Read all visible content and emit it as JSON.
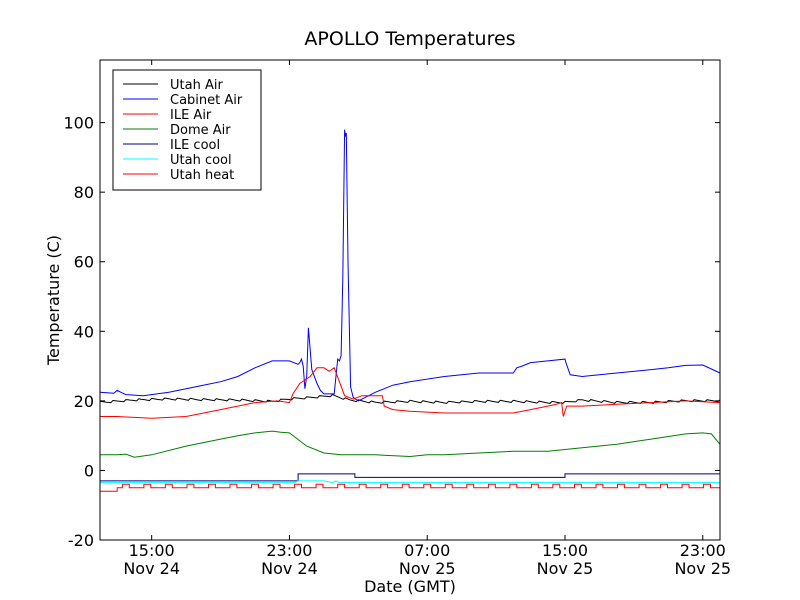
{
  "chart_data": {
    "type": "line",
    "title": "APOLLO Temperatures",
    "xlabel": "Date (GMT)",
    "ylabel": "Temperature (C)",
    "xunit": "hours since Nov 24 12:00 GMT",
    "xlim": [
      0,
      36
    ],
    "ylim": [
      -20,
      118
    ],
    "yticks": [
      -20,
      0,
      20,
      40,
      60,
      80,
      100
    ],
    "xticks": [
      {
        "x": 3,
        "time": "15:00",
        "date": "Nov 24"
      },
      {
        "x": 11,
        "time": "23:00",
        "date": "Nov 24"
      },
      {
        "x": 19,
        "time": "07:00",
        "date": "Nov 25"
      },
      {
        "x": 27,
        "time": "15:00",
        "date": "Nov 25"
      },
      {
        "x": 35,
        "time": "23:00",
        "date": "Nov 25"
      }
    ],
    "grid": false,
    "legend_position": "top-left",
    "series": [
      {
        "name": "Utah Air",
        "color": "#000000",
        "kind": "sawtooth",
        "x": [
          0,
          2,
          4,
          6,
          8,
          10,
          11,
          12.5,
          13.5,
          14.5,
          16,
          18,
          20,
          22,
          24,
          26,
          27,
          28,
          30,
          32,
          34,
          36
        ],
        "y": [
          19.5,
          20.2,
          20.5,
          20.3,
          20.2,
          19.8,
          20.5,
          21,
          21.5,
          20.2,
          19.5,
          19.8,
          19.5,
          19.8,
          19.8,
          19.5,
          19.5,
          20.2,
          19.5,
          19.5,
          20,
          20
        ],
        "amp": 0.7,
        "period": 0.75
      },
      {
        "name": "Cabinet Air",
        "color": "#0000ff",
        "x": [
          0,
          0.8,
          1,
          1.2,
          1.5,
          2.5,
          4,
          6,
          7,
          8,
          9,
          10,
          11,
          11.5,
          11.6,
          11.7,
          11.8,
          11.9,
          12.0,
          12.1,
          12.3,
          12.6,
          12.8,
          13.0,
          13.6,
          13.8,
          13.9,
          14.0,
          14.1,
          14.2,
          14.25,
          14.3,
          14.4,
          14.55,
          14.7,
          15.0,
          16,
          17,
          18,
          20,
          22,
          24,
          24.2,
          24.5,
          25,
          26,
          27,
          27.05,
          27.3,
          28,
          30,
          32,
          33,
          34,
          35,
          36
        ],
        "y": [
          22.5,
          22.2,
          23,
          22.5,
          21.8,
          21.5,
          22.5,
          24.5,
          25.5,
          27,
          29.5,
          31.5,
          31.5,
          30.5,
          31,
          32,
          30,
          23.5,
          27,
          41,
          29,
          25,
          23,
          22,
          22,
          32,
          31.5,
          33,
          55,
          98,
          96,
          97,
          60,
          24,
          21,
          20,
          22.5,
          24.5,
          25.5,
          27,
          28,
          28,
          29.5,
          30,
          31,
          31.5,
          32,
          31,
          27.5,
          27,
          28,
          29,
          29.5,
          30.2,
          30.3,
          28
        ]
      },
      {
        "name": "ILE Air",
        "color": "#ff0000",
        "x": [
          0,
          1,
          3,
          5,
          7,
          9,
          10.3,
          11,
          11.2,
          11.6,
          12.2,
          12.6,
          13,
          13.3,
          13.6,
          14.2,
          14.7,
          15.2,
          16.4,
          16.5,
          17,
          18,
          20,
          22,
          24,
          25,
          26,
          26.5,
          26.8,
          26.9,
          27.1,
          27.3,
          28,
          30,
          32,
          34,
          36
        ],
        "y": [
          15.5,
          15.5,
          15,
          15.5,
          17.5,
          19.5,
          20,
          19.5,
          22,
          25,
          27,
          29.5,
          29.5,
          28.5,
          29.5,
          21.5,
          20.5,
          21.5,
          21.5,
          18.5,
          17.5,
          17,
          16.5,
          16.5,
          16.5,
          17.5,
          18.5,
          19,
          19.5,
          15.5,
          18.5,
          18.5,
          18.5,
          19,
          19.5,
          20,
          19.5
        ]
      },
      {
        "name": "Dome Air",
        "color": "#008000",
        "x": [
          0,
          1,
          1.5,
          2,
          3,
          5,
          7,
          8,
          9,
          10,
          10.5,
          11,
          12,
          13,
          14,
          16,
          18,
          19,
          20,
          22,
          24,
          25,
          26,
          28,
          30,
          32,
          34,
          35,
          35.5,
          36
        ],
        "y": [
          4.5,
          4.5,
          4.7,
          3.8,
          4.5,
          7,
          9,
          10,
          10.8,
          11.3,
          11,
          10.8,
          7,
          5,
          4.5,
          4.5,
          4,
          4.5,
          4.5,
          5,
          5.5,
          5.5,
          5.5,
          6.5,
          7.5,
          9,
          10.5,
          10.8,
          10.5,
          7.5
        ]
      },
      {
        "name": "ILE cool",
        "color": "#000080",
        "kind": "step",
        "x": [
          0,
          11.5,
          11.5,
          14.8,
          14.8,
          27,
          27,
          36
        ],
        "y": [
          -3,
          -3,
          -1,
          -1,
          -2,
          -2,
          -1,
          -1
        ]
      },
      {
        "name": "Utah cool",
        "color": "#00ffff",
        "x": [
          0,
          11.3,
          11.5,
          13,
          13.5,
          13.7,
          13.9,
          14.5,
          36
        ],
        "y": [
          -3.5,
          -3.5,
          -3,
          -3,
          -3.5,
          -3,
          -3.5,
          -3.5,
          -3.5
        ]
      },
      {
        "name": "Utah heat",
        "color": "#ff0000",
        "kind": "pulses",
        "base": -5,
        "high": -4,
        "start_y": -6,
        "start_until": 1,
        "period": 1.25,
        "width": 0.4,
        "x_start": 1,
        "x_end": 36
      }
    ]
  }
}
